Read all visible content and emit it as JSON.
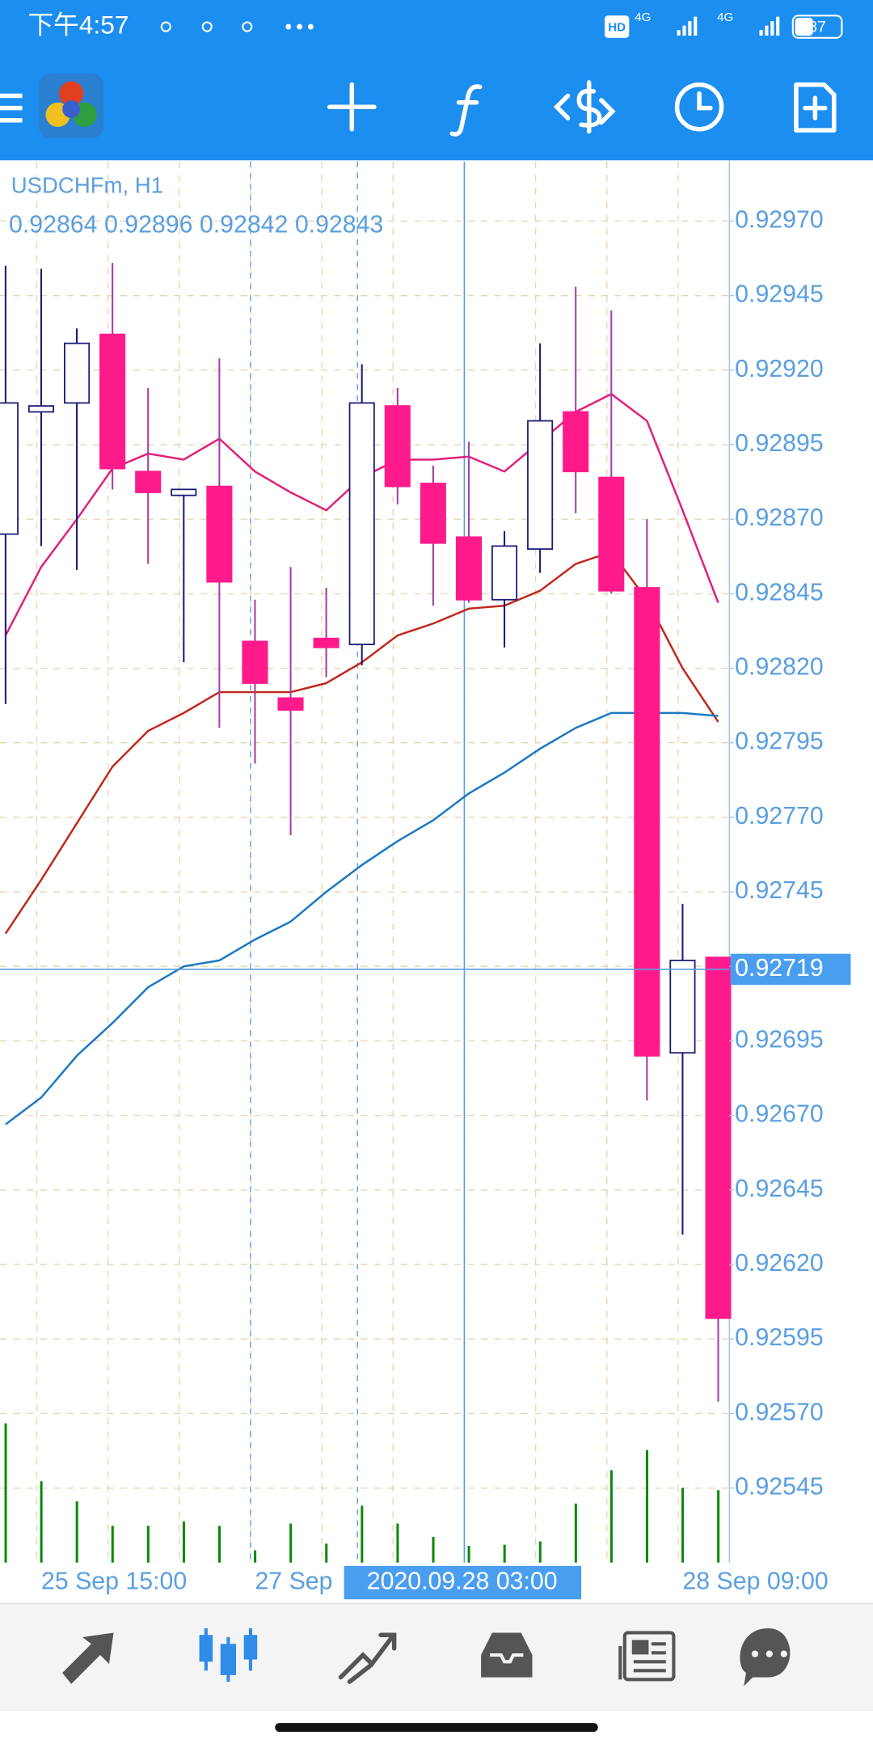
{
  "status_bar": {
    "time": "下午4:57",
    "hd": "HD",
    "network_1": "4G",
    "network_2": "4G",
    "battery": "37"
  },
  "chart_data": {
    "type": "candlestick",
    "title": "USDCHFm, H1",
    "ohlc_label": "0.92864 0.92896 0.92842 0.92843",
    "categories": [
      null,
      "25 Sep 15:00",
      null,
      null,
      null,
      null,
      null,
      "27 Sep",
      null,
      null,
      null,
      null,
      null,
      null,
      null,
      null,
      null,
      null,
      null,
      "28 Sep 09:00",
      null
    ],
    "open": [
      0.92865,
      0.92906,
      0.92909,
      0.92932,
      0.92886,
      0.92878,
      0.92881,
      0.92829,
      0.9281,
      0.9283,
      0.92828,
      0.92908,
      0.92882,
      0.92864,
      0.92843,
      0.9286,
      0.92906,
      0.92884,
      0.92847,
      0.92691,
      0.92723
    ],
    "high": [
      0.92955,
      0.92954,
      0.92934,
      0.92956,
      0.92914,
      0.9288,
      0.92924,
      0.92843,
      0.92854,
      0.92847,
      0.92922,
      0.92914,
      0.92888,
      0.92896,
      0.92866,
      0.92929,
      0.92948,
      0.9294,
      0.9287,
      0.92741,
      0.92723
    ],
    "low": [
      0.92808,
      0.92861,
      0.92853,
      0.9288,
      0.92855,
      0.92822,
      0.928,
      0.92788,
      0.92764,
      0.92817,
      0.92821,
      0.92875,
      0.92841,
      0.92842,
      0.92827,
      0.92852,
      0.92872,
      0.92845,
      0.92675,
      0.9263,
      0.92574
    ],
    "close": [
      0.92909,
      0.92908,
      0.92929,
      0.92887,
      0.92879,
      0.9288,
      0.92849,
      0.92815,
      0.92806,
      0.92827,
      0.92909,
      0.92881,
      0.92862,
      0.92843,
      0.92861,
      0.92903,
      0.92886,
      0.92846,
      0.9269,
      0.92722,
      0.92602
    ],
    "up_color": "#ffffff",
    "up_border": "#1c1c78",
    "down_color": "#ff1a8c",
    "down_wick": "#a43fa6",
    "ma_lines": [
      {
        "color": "#e0207a",
        "values": [
          0.92831,
          0.92854,
          0.9287,
          0.92887,
          0.92892,
          0.9289,
          0.92897,
          0.92886,
          0.92879,
          0.92873,
          0.92884,
          0.9289,
          0.9289,
          0.92891,
          0.92886,
          0.92896,
          0.92906,
          0.92912,
          0.92903,
          0.92873,
          0.92842
        ]
      },
      {
        "color": "#c0281c",
        "values": [
          0.92731,
          0.92749,
          0.92768,
          0.92787,
          0.92799,
          0.92805,
          0.92812,
          0.92812,
          0.92812,
          0.92815,
          0.92822,
          0.92831,
          0.92835,
          0.9284,
          0.92841,
          0.92846,
          0.92855,
          0.92859,
          0.92843,
          0.9282,
          0.92802
        ]
      },
      {
        "color": "#1a78c2",
        "values": [
          0.92667,
          0.92676,
          0.9269,
          0.92701,
          0.92713,
          0.9272,
          0.92722,
          0.92729,
          0.92735,
          0.92745,
          0.92754,
          0.92762,
          0.92769,
          0.92778,
          0.92785,
          0.92793,
          0.928,
          0.92805,
          0.92805,
          0.92805,
          0.92804
        ]
      }
    ],
    "volume": {
      "color": "#0a8a0a",
      "values": [
        125,
        73,
        55,
        33,
        33,
        37,
        33,
        11,
        35,
        17,
        51,
        35,
        23,
        15,
        16,
        19,
        53,
        83,
        101,
        67,
        65
      ]
    },
    "ylim": [
      0.9252,
      0.9299
    ],
    "yticks": [
      {
        "value": 0.9297,
        "label": "0.92970"
      },
      {
        "value": 0.92945,
        "label": "0.92945"
      },
      {
        "value": 0.9292,
        "label": "0.92920"
      },
      {
        "value": 0.92895,
        "label": "0.92895"
      },
      {
        "value": 0.9287,
        "label": "0.92870"
      },
      {
        "value": 0.92845,
        "label": "0.92845"
      },
      {
        "value": 0.9282,
        "label": "0.92820"
      },
      {
        "value": 0.92795,
        "label": "0.92795"
      },
      {
        "value": 0.9277,
        "label": "0.92770"
      },
      {
        "value": 0.92745,
        "label": "0.92745"
      },
      {
        "value": 0.9272,
        "label": "0.92720"
      },
      {
        "value": 0.92695,
        "label": "0.92695"
      },
      {
        "value": 0.9267,
        "label": "0.92670"
      },
      {
        "value": 0.92645,
        "label": "0.92645"
      },
      {
        "value": 0.9262,
        "label": "0.92620"
      },
      {
        "value": 0.92595,
        "label": "0.92595"
      },
      {
        "value": 0.9257,
        "label": "0.92570"
      },
      {
        "value": 0.92545,
        "label": "0.92545"
      }
    ],
    "grid": true,
    "crosshair": {
      "price": {
        "value": 0.92719,
        "label": "0.92719"
      },
      "time_label": "2020.09.28 03:00"
    }
  }
}
